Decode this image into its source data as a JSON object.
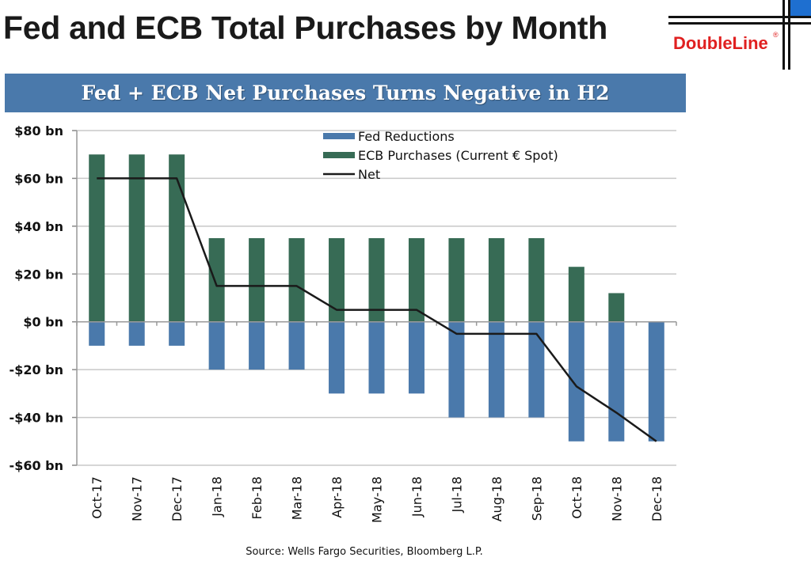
{
  "header": {
    "title": "Fed and ECB Total Purchases by Month",
    "logo_text": "DoubleLine",
    "logo_mark": "®"
  },
  "colors": {
    "fed": "#4a79ab",
    "ecb": "#376b55",
    "net": "#1a1a1a",
    "banner": "#4a79ab",
    "logo_red": "#e02020",
    "logo_blue": "#1e6fd0"
  },
  "chart_data": {
    "type": "bar",
    "title": "Fed + ECB Net Purchases Turns Negative in H2",
    "xlabel": "",
    "ylabel": "",
    "ylim": [
      -60,
      80
    ],
    "yticks": [
      80,
      60,
      40,
      20,
      0,
      -20,
      -40,
      -60
    ],
    "ytick_labels": [
      "$80 bn",
      "$60 bn",
      "$40 bn",
      "$20 bn",
      "$0 bn",
      "-$20 bn",
      "-$40 bn",
      "-$60 bn"
    ],
    "grid": true,
    "legend_position": "top-center",
    "categories": [
      "Oct-17",
      "Nov-17",
      "Dec-17",
      "Jan-18",
      "Feb-18",
      "Mar-18",
      "Apr-18",
      "May-18",
      "Jun-18",
      "Jul-18",
      "Aug-18",
      "Sep-18",
      "Oct-18",
      "Nov-18",
      "Dec-18"
    ],
    "series": [
      {
        "name": "Fed Reductions",
        "type": "bar",
        "values": [
          -10,
          -10,
          -10,
          -20,
          -20,
          -20,
          -30,
          -30,
          -30,
          -40,
          -40,
          -40,
          -50,
          -50,
          -50
        ]
      },
      {
        "name": "ECB Purchases (Current € Spot)",
        "type": "bar",
        "values": [
          70,
          70,
          70,
          35,
          35,
          35,
          35,
          35,
          35,
          35,
          35,
          35,
          23,
          12,
          0
        ]
      },
      {
        "name": "Net",
        "type": "line",
        "values": [
          60,
          60,
          60,
          15,
          15,
          15,
          5,
          5,
          5,
          -5,
          -5,
          -5,
          -27,
          -38,
          -50
        ]
      }
    ],
    "source": "Source: Wells Fargo Securities, Bloomberg L.P."
  }
}
